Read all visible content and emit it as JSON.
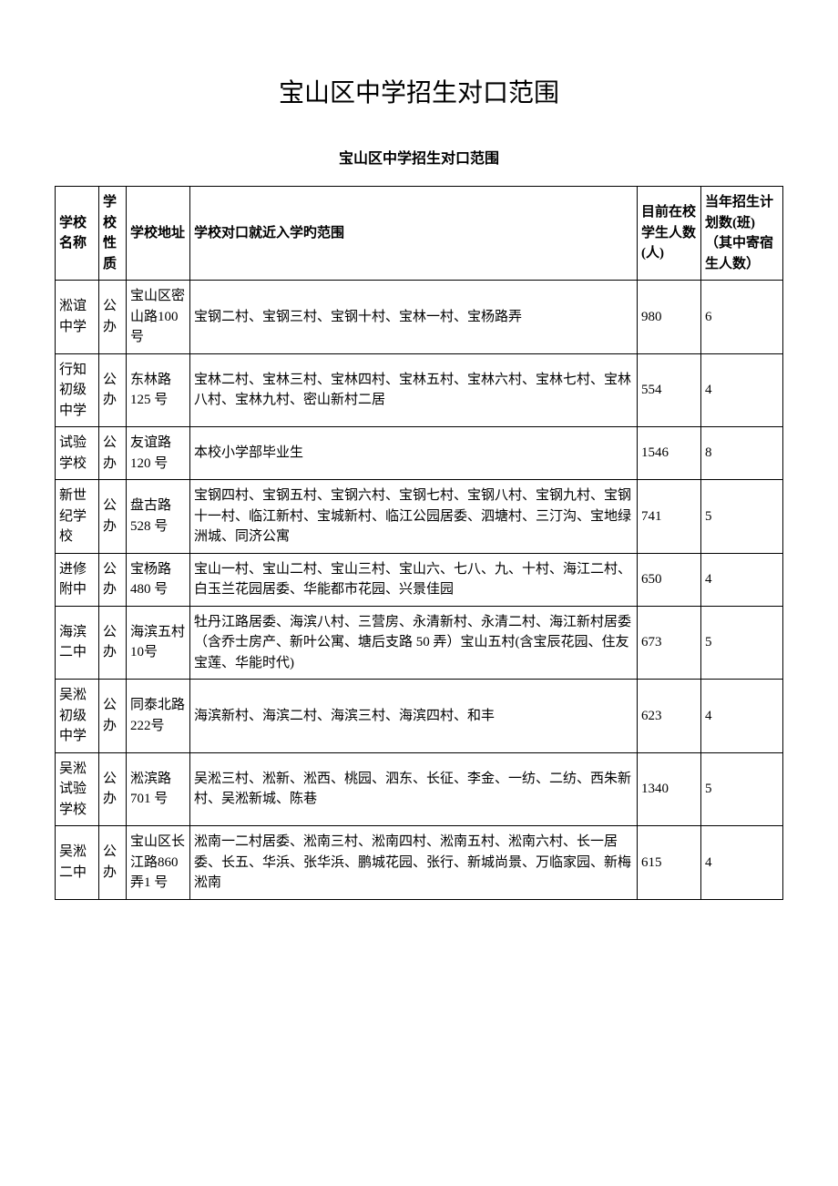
{
  "main_title": "宝山区中学招生对口范围",
  "sub_title": "宝山区中学招生对口范围",
  "headers": {
    "name": "学校名称",
    "type": "学校性质",
    "addr": "学校地址",
    "scope": "学校对口就近入学旳范围",
    "students": "目前在校学生人数(人)",
    "plan": "当年招生计划数(班)（其中寄宿生人数）"
  },
  "rows": [
    {
      "name": "淞谊中学",
      "type": "公办",
      "addr": "宝山区密山路100 号",
      "scope": "宝钢二村、宝钢三村、宝钢十村、宝林一村、宝杨路弄",
      "students": "980",
      "plan": "6"
    },
    {
      "name": "行知初级中学",
      "type": "公办",
      "addr": "东林路125 号",
      "scope": "宝林二村、宝林三村、宝林四村、宝林五村、宝林六村、宝林七村、宝林八村、宝林九村、密山新村二居",
      "students": "554",
      "plan": "4"
    },
    {
      "name": "试验学校",
      "type": "公办",
      "addr": "友谊路120 号",
      "scope": "本校小学部毕业生",
      "students": "1546",
      "plan": "8"
    },
    {
      "name": "新世纪学校",
      "type": "公办",
      "addr": "盘古路528 号",
      "scope": "宝钢四村、宝钢五村、宝钢六村、宝钢七村、宝钢八村、宝钢九村、宝钢十一村、临江新村、宝城新村、临江公园居委、泗塘村、三汀沟、宝地绿洲城、同济公寓",
      "students": "741",
      "plan": "5"
    },
    {
      "name": "进修附中",
      "type": "公办",
      "addr": "宝杨路480 号",
      "scope": "宝山一村、宝山二村、宝山三村、宝山六、七八、九、十村、海江二村、白玉兰花园居委、华能都市花园、兴景佳园",
      "students": "650",
      "plan": "4"
    },
    {
      "name": "海滨二中",
      "type": "公办",
      "addr": "海滨五村 10号",
      "scope": "牡丹江路居委、海滨八村、三营房、永清新村、永清二村、海江新村居委（含乔士房产、新叶公寓、塘后支路 50 弄）宝山五村(含宝辰花园、住友宝莲、华能时代)",
      "students": "673",
      "plan": "5"
    },
    {
      "name": "吴淞初级中学",
      "type": "公办",
      "addr": "同泰北路 222号",
      "scope": "海滨新村、海滨二村、海滨三村、海滨四村、和丰",
      "students": "623",
      "plan": "4"
    },
    {
      "name": "吴淞试验学校",
      "type": "公办",
      "addr": "淞滨路701 号",
      "scope": "吴淞三村、淞新、淞西、桃园、泗东、长征、李金、一纺、二纺、西朱新村、吴淞新城、陈巷",
      "students": "1340",
      "plan": "5"
    },
    {
      "name": "吴淞二中",
      "type": "公办",
      "addr": "宝山区长江路860 弄1 号",
      "scope": "淞南一二村居委、淞南三村、淞南四村、淞南五村、淞南六村、长一居委、长五、华浜、张华浜、鹏城花园、张行、新城尚景、万临家园、新梅淞南",
      "students": "615",
      "plan": "4"
    }
  ]
}
